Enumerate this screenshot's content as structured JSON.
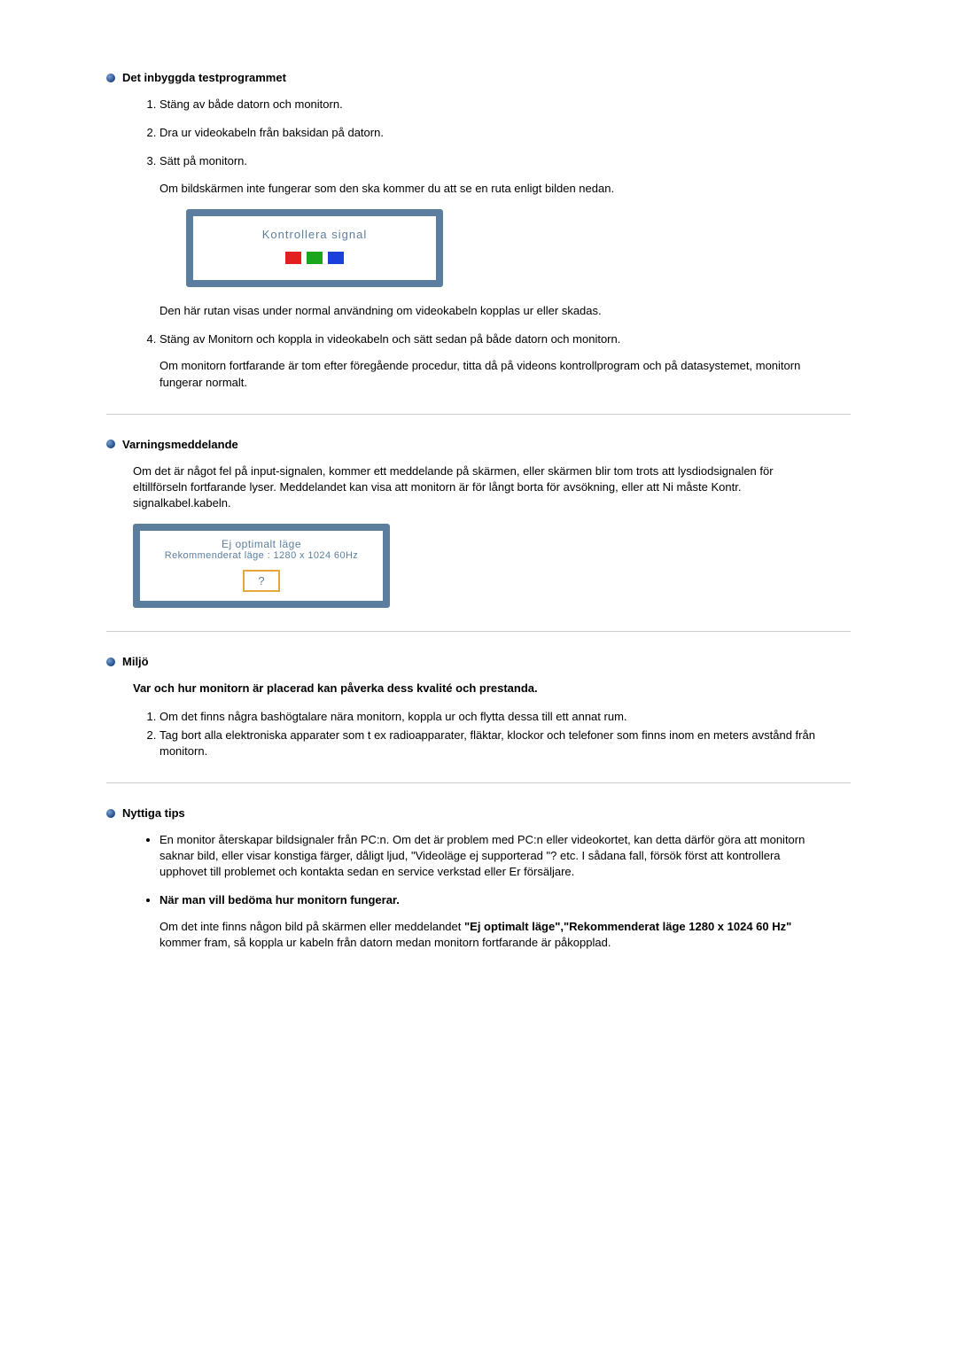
{
  "colors": {
    "frame_border": "#5b7e9e",
    "signal_text": "#5b7e9e",
    "red": "#e22020",
    "green": "#1aa51a",
    "blue": "#1a3fda",
    "warn_text": "#5b7e9e",
    "qmark_border": "#e6a63a",
    "qmark_text": "#5b7e9e"
  },
  "sec1": {
    "title": "Det inbyggda testprogrammet",
    "items": {
      "i1": "Stäng av både datorn och monitorn.",
      "i2": "Dra ur videokabeln från baksidan på datorn.",
      "i3": "Sätt på monitorn.",
      "i3_para": "Om bildskärmen inte fungerar som den ska kommer du att se en ruta enligt bilden nedan.",
      "signalbox_text": "Kontrollera signal",
      "i3_after": "Den här rutan visas under normal användning om videokabeln kopplas ur eller skadas.",
      "i4": "Stäng av Monitorn och koppla in videokabeln och sätt sedan på både datorn och monitorn.",
      "i4_para": "Om monitorn fortfarande är tom efter föregående procedur, titta då på videons kontrollprogram och på datasystemet, monitorn fungerar normalt."
    }
  },
  "sec2": {
    "title": "Varningsmeddelande",
    "body": "Om det är något fel på input-signalen, kommer ett meddelande på skärmen, eller skärmen blir tom trots att lysdiodsignalen för eltillförseln fortfarande lyser. Meddelandet kan visa att monitorn är för långt borta för avsökning, eller att Ni måste Kontr. signalkabel.kabeln.",
    "warn_line1": "Ej optimalt läge",
    "warn_line2": "Rekommenderat läge : 1280 x 1024 60Hz",
    "qmark": "?"
  },
  "sec3": {
    "title": "Miljö",
    "intro": "Var och hur monitorn är placerad kan påverka dess kvalité och prestanda.",
    "items": {
      "i1": "Om det finns några bashögtalare nära monitorn, koppla ur och flytta dessa till ett annat rum.",
      "i2": "Tag bort alla elektroniska apparater som t ex radioapparater, fläktar, klockor och telefoner som finns inom en meters avstånd från monitorn."
    }
  },
  "sec4": {
    "title": "Nyttiga tips",
    "bullet1": "En monitor återskapar bildsignaler från PC:n. Om det är problem med PC:n eller videokortet, kan detta därför göra att monitorn saknar bild, eller visar konstiga färger, dåligt ljud, \"Videoläge ej supporterad \"? etc. I sådana fall, försök först att kontrollera upphovet till problemet och kontakta sedan en service verkstad eller Er försäljare.",
    "subheading": "När man vill bedöma hur monitorn fungerar.",
    "para_pre": "Om det inte finns någon bild på skärmen eller meddelandet ",
    "para_bold": "\"Ej optimalt läge\",\"Rekommenderat läge 1280 x 1024 60 Hz\"",
    "para_post": " kommer fram, så koppla ur kabeln från datorn medan monitorn fortfarande är påkopplad."
  }
}
